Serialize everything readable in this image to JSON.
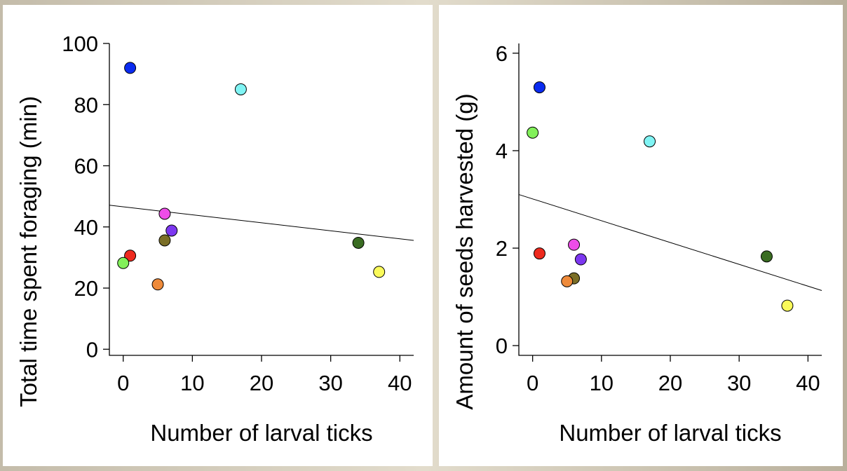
{
  "chart_data": [
    {
      "type": "scatter",
      "xlabel": "Number of larval ticks",
      "ylabel": "Total time spent foraging (min)",
      "xlim": [
        -2,
        42
      ],
      "ylim": [
        -2,
        100
      ],
      "xticks": [
        0,
        10,
        20,
        30,
        40
      ],
      "yticks": [
        0,
        20,
        40,
        60,
        80,
        100
      ],
      "points": [
        {
          "x": 1,
          "y": 92,
          "color": "#0a2bf0"
        },
        {
          "x": 17,
          "y": 85,
          "color": "#80f4f4"
        },
        {
          "x": 6,
          "y": 44.3,
          "color": "#ee4ce8"
        },
        {
          "x": 7,
          "y": 38.8,
          "color": "#7c37f0"
        },
        {
          "x": 6,
          "y": 35.6,
          "color": "#7a6e26"
        },
        {
          "x": 34,
          "y": 34.8,
          "color": "#3a6c22"
        },
        {
          "x": 1,
          "y": 30.6,
          "color": "#ee2a1e"
        },
        {
          "x": 0,
          "y": 28.2,
          "color": "#82f05a"
        },
        {
          "x": 37,
          "y": 25.3,
          "color": "#fafa5a"
        },
        {
          "x": 5,
          "y": 21.2,
          "color": "#ee8a3a"
        }
      ],
      "trendline": {
        "x": [
          -2,
          42
        ],
        "y": [
          47.1,
          35.6
        ]
      },
      "grid": false,
      "legend": "none"
    },
    {
      "type": "scatter",
      "xlabel": "Number of larval ticks",
      "ylabel": "Amount of seeds harvested (g)",
      "xlim": [
        -2,
        42
      ],
      "ylim": [
        -0.2,
        6.2
      ],
      "xticks": [
        0,
        10,
        20,
        30,
        40
      ],
      "yticks": [
        0,
        2,
        4,
        6
      ],
      "points": [
        {
          "x": 1,
          "y": 5.3,
          "color": "#0a2bf0"
        },
        {
          "x": 0,
          "y": 4.37,
          "color": "#82f05a"
        },
        {
          "x": 17,
          "y": 4.19,
          "color": "#80f4f4"
        },
        {
          "x": 6,
          "y": 2.07,
          "color": "#ee4ce8"
        },
        {
          "x": 1,
          "y": 1.89,
          "color": "#ee2a1e"
        },
        {
          "x": 34,
          "y": 1.83,
          "color": "#3a6c22"
        },
        {
          "x": 7,
          "y": 1.77,
          "color": "#7c37f0"
        },
        {
          "x": 6,
          "y": 1.38,
          "color": "#7a6e26"
        },
        {
          "x": 5,
          "y": 1.32,
          "color": "#ee8a3a"
        },
        {
          "x": 37,
          "y": 0.82,
          "color": "#fafa5a"
        }
      ],
      "trendline": {
        "x": [
          -2,
          42
        ],
        "y": [
          3.1,
          1.13
        ]
      },
      "grid": false,
      "legend": "none"
    }
  ]
}
